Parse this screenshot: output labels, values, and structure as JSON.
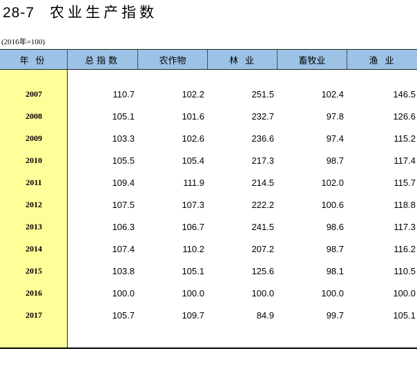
{
  "title": {
    "number": "28-7",
    "text": "农业生产指数"
  },
  "base_note": "(2016年=100)",
  "columns": [
    "年份",
    "总指数",
    "农作物",
    "林业",
    "畜牧业",
    "渔业"
  ],
  "rows": [
    {
      "year": "2007",
      "values": [
        "110.7",
        "102.2",
        "251.5",
        "102.4",
        "146.5"
      ]
    },
    {
      "year": "2008",
      "values": [
        "105.1",
        "101.6",
        "232.7",
        "97.8",
        "126.6"
      ]
    },
    {
      "year": "2009",
      "values": [
        "103.3",
        "102.6",
        "236.6",
        "97.4",
        "115.2"
      ]
    },
    {
      "year": "2010",
      "values": [
        "105.5",
        "105.4",
        "217.3",
        "98.7",
        "117.4"
      ]
    },
    {
      "year": "2011",
      "values": [
        "109.4",
        "111.9",
        "214.5",
        "102.0",
        "115.7"
      ]
    },
    {
      "year": "2012",
      "values": [
        "107.5",
        "107.3",
        "222.2",
        "100.6",
        "118.8"
      ]
    },
    {
      "year": "2013",
      "values": [
        "106.3",
        "106.7",
        "241.5",
        "98.6",
        "117.3"
      ]
    },
    {
      "year": "2014",
      "values": [
        "107.4",
        "110.2",
        "207.2",
        "98.7",
        "116.2"
      ]
    },
    {
      "year": "2015",
      "values": [
        "103.8",
        "105.1",
        "125.6",
        "98.1",
        "110.5"
      ]
    },
    {
      "year": "2016",
      "values": [
        "100.0",
        "100.0",
        "100.0",
        "100.0",
        "100.0"
      ]
    },
    {
      "year": "2017",
      "values": [
        "105.7",
        "109.7",
        "84.9",
        "99.7",
        "105.1"
      ]
    }
  ],
  "colors": {
    "header_bg": "#9cc2e6",
    "year_col_bg": "#ffff99"
  }
}
